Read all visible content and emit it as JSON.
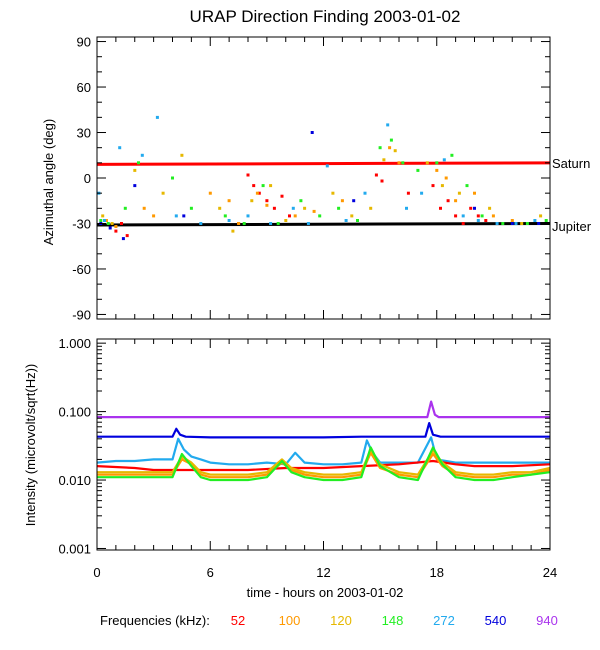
{
  "chart_data": {
    "title": "URAP Direction Finding  2003-01-02",
    "type": "scatter",
    "x_axis": {
      "label": "time - hours on 2003-01-02",
      "range": [
        0,
        24
      ],
      "ticks": [
        0,
        6,
        12,
        18,
        24
      ],
      "tick_labels": [
        "0",
        "6",
        "12",
        "18",
        "24"
      ]
    },
    "frequencies_label": "Frequencies (kHz):",
    "frequencies": [
      {
        "name": "52",
        "color": "#ff0000"
      },
      {
        "name": "100",
        "color": "#ff9900"
      },
      {
        "name": "120",
        "color": "#e6b800"
      },
      {
        "name": "148",
        "color": "#22ee22"
      },
      {
        "name": "272",
        "color": "#22aaee"
      },
      {
        "name": "540",
        "color": "#0000dd"
      },
      {
        "name": "940",
        "color": "#aa33ee"
      }
    ],
    "panels": [
      {
        "id": "azimuth",
        "ylabel": "Azimuthal angle (deg)",
        "ylim": [
          -93,
          93
        ],
        "yticks": [
          90,
          60,
          30,
          0,
          -30,
          -60,
          -90
        ],
        "ytick_labels": [
          "90",
          "60",
          "30",
          "0",
          "-30",
          "-60",
          "-90"
        ],
        "reference_lines": [
          {
            "label": "Saturn",
            "color": "#ff0000",
            "x": [
              0,
              24
            ],
            "y": [
              9,
              10
            ]
          },
          {
            "label": "Jupiter",
            "color": "#000000",
            "x": [
              0,
              24
            ],
            "y": [
              -31,
              -30
            ]
          }
        ],
        "series": [
          {
            "name": "52",
            "x": [
              1.0,
              1.3,
              1.6,
              7.5,
              8.0,
              8.3,
              8.6,
              9.0,
              9.4,
              9.8,
              10.2,
              14.8,
              15.1,
              16.5,
              17.8,
              18.2,
              18.6,
              19.0,
              19.4,
              19.8,
              20.2,
              20.6
            ],
            "y": [
              -35,
              -30,
              -38,
              -30,
              2,
              -5,
              -10,
              -15,
              -20,
              -12,
              -25,
              2,
              -2,
              -10,
              -5,
              -20,
              -15,
              -25,
              -30,
              -20,
              -25,
              -28
            ]
          },
          {
            "name": "100",
            "x": [
              0.5,
              1.0,
              2.5,
              3.0,
              6.0,
              7.0,
              7.5,
              8.5,
              9.0,
              10.5,
              11.5,
              13.0,
              15.5,
              16.0,
              18.0,
              18.5,
              19.0,
              20.0,
              21.0,
              22.0
            ],
            "y": [
              -28,
              -32,
              -20,
              -25,
              -10,
              -15,
              -30,
              -10,
              -18,
              -25,
              -22,
              -15,
              20,
              10,
              5,
              0,
              -15,
              -10,
              -25,
              -28
            ]
          },
          {
            "name": "120",
            "x": [
              0.3,
              0.8,
              2.0,
              3.5,
              4.5,
              6.5,
              7.2,
              8.2,
              9.2,
              10.0,
              11.0,
              12.5,
              13.5,
              14.5,
              15.2,
              15.8,
              17.5,
              18.3,
              19.2,
              20.8,
              22.5,
              23.5
            ],
            "y": [
              -25,
              -30,
              5,
              -10,
              15,
              -20,
              -35,
              -15,
              -5,
              -28,
              -20,
              -10,
              -25,
              -20,
              12,
              18,
              10,
              -5,
              -10,
              -20,
              -30,
              -25
            ]
          },
          {
            "name": "148",
            "x": [
              0.2,
              0.6,
              1.5,
              2.2,
              4.0,
              5.0,
              6.8,
              7.8,
              8.8,
              9.6,
              10.8,
              11.8,
              12.8,
              13.8,
              15.0,
              15.6,
              16.2,
              17.0,
              18.0,
              18.8,
              19.6,
              20.4,
              21.5,
              22.8,
              23.8
            ],
            "y": [
              -28,
              -30,
              -20,
              10,
              0,
              -20,
              -25,
              -30,
              -5,
              -30,
              -15,
              -25,
              -20,
              -28,
              20,
              25,
              10,
              5,
              10,
              15,
              -5,
              -25,
              -30,
              -30,
              -28
            ]
          },
          {
            "name": "272",
            "x": [
              0.1,
              0.4,
              1.2,
              2.4,
              3.2,
              4.2,
              5.5,
              7.0,
              8.0,
              9.2,
              10.4,
              11.2,
              12.2,
              13.2,
              14.2,
              15.4,
              16.4,
              17.2,
              18.4,
              19.4,
              20.2,
              21.2,
              22.2,
              23.2
            ],
            "y": [
              -10,
              -28,
              20,
              15,
              40,
              -25,
              -30,
              -28,
              -25,
              -30,
              -20,
              -30,
              8,
              -28,
              -10,
              35,
              -20,
              -10,
              12,
              -25,
              -28,
              -30,
              -30,
              -28
            ]
          },
          {
            "name": "540",
            "x": [
              0.2,
              0.7,
              1.4,
              2.0,
              4.6,
              11.4,
              13.6,
              20.0,
              22.0,
              23.4
            ],
            "y": [
              -30,
              -33,
              -40,
              -5,
              -25,
              30,
              -15,
              -20,
              -30,
              -30
            ]
          }
        ]
      },
      {
        "id": "intensity",
        "ylabel": "Intensity (microvolt/sqrt(Hz))",
        "scale": "log",
        "ylim": [
          0.00095,
          1.15
        ],
        "yticks": [
          1.0,
          0.1,
          0.01,
          0.001
        ],
        "ytick_labels": [
          "1.000",
          "0.100",
          "0.010",
          "0.001"
        ],
        "series": [
          {
            "name": "940",
            "x": [
              0,
              4,
              8,
              12,
              16,
              17.5,
              17.7,
              17.9,
              18.1,
              20,
              24
            ],
            "y": [
              0.083,
              0.083,
              0.083,
              0.083,
              0.083,
              0.083,
              0.14,
              0.09,
              0.083,
              0.083,
              0.083
            ]
          },
          {
            "name": "540",
            "x": [
              0,
              2,
              4,
              4.2,
              4.4,
              4.7,
              6,
              8,
              10,
              12,
              14,
              16,
              17.4,
              17.6,
              17.8,
              18.2,
              20,
              22,
              24
            ],
            "y": [
              0.043,
              0.043,
              0.043,
              0.056,
              0.046,
              0.043,
              0.042,
              0.042,
              0.042,
              0.042,
              0.043,
              0.043,
              0.043,
              0.068,
              0.046,
              0.043,
              0.043,
              0.043,
              0.043
            ]
          },
          {
            "name": "272",
            "x": [
              0,
              1,
              2,
              3,
              4,
              4.3,
              4.6,
              5,
              5.5,
              6,
              7,
              8,
              9,
              10,
              10.5,
              11,
              12,
              13,
              14,
              14.3,
              14.6,
              15,
              16,
              17,
              17.7,
              18,
              19,
              20,
              21,
              22,
              23,
              24
            ],
            "y": [
              0.018,
              0.019,
              0.019,
              0.02,
              0.02,
              0.04,
              0.028,
              0.022,
              0.02,
              0.018,
              0.017,
              0.017,
              0.018,
              0.017,
              0.025,
              0.018,
              0.017,
              0.017,
              0.018,
              0.038,
              0.025,
              0.018,
              0.018,
              0.018,
              0.042,
              0.02,
              0.018,
              0.018,
              0.018,
              0.018,
              0.018,
              0.018
            ]
          },
          {
            "name": "52",
            "x": [
              0,
              2,
              3,
              4,
              6,
              8,
              10,
              12,
              14,
              16,
              17.8,
              18.4,
              19,
              20,
              21,
              22,
              24
            ],
            "y": [
              0.016,
              0.015,
              0.014,
              0.014,
              0.014,
              0.014,
              0.015,
              0.015,
              0.016,
              0.017,
              0.019,
              0.018,
              0.017,
              0.016,
              0.016,
              0.016,
              0.017
            ]
          },
          {
            "name": "100",
            "x": [
              0,
              1,
              2,
              3,
              4,
              4.5,
              5,
              5.5,
              6,
              7,
              8,
              9,
              9.8,
              10.3,
              11,
              12,
              13,
              14,
              14.5,
              15,
              16,
              17,
              17.8,
              18.3,
              19,
              20,
              21,
              22,
              23,
              24
            ],
            "y": [
              0.012,
              0.012,
              0.012,
              0.012,
              0.012,
              0.02,
              0.017,
              0.012,
              0.011,
              0.011,
              0.011,
              0.012,
              0.018,
              0.014,
              0.012,
              0.011,
              0.011,
              0.012,
              0.025,
              0.015,
              0.012,
              0.011,
              0.024,
              0.016,
              0.012,
              0.011,
              0.011,
              0.012,
              0.012,
              0.014
            ]
          },
          {
            "name": "120",
            "x": [
              0,
              1,
              2,
              3,
              4,
              4.5,
              5,
              5.5,
              6,
              7,
              8,
              9,
              9.8,
              10.3,
              11,
              12,
              13,
              14,
              14.5,
              15,
              16,
              17,
              17.8,
              18.3,
              19,
              20,
              21,
              22,
              23,
              24
            ],
            "y": [
              0.013,
              0.013,
              0.013,
              0.013,
              0.013,
              0.022,
              0.018,
              0.013,
              0.012,
              0.012,
              0.012,
              0.013,
              0.02,
              0.015,
              0.013,
              0.012,
              0.012,
              0.013,
              0.028,
              0.017,
              0.013,
              0.012,
              0.027,
              0.018,
              0.013,
              0.012,
              0.012,
              0.013,
              0.013,
              0.015
            ]
          },
          {
            "name": "148",
            "x": [
              0,
              1,
              2,
              3,
              4,
              4.5,
              5,
              5.5,
              6,
              7,
              8,
              9,
              9.8,
              10.3,
              11,
              12,
              13,
              14,
              14.5,
              15,
              16,
              17,
              17.8,
              18.3,
              19,
              20,
              21,
              22,
              23,
              24
            ],
            "y": [
              0.011,
              0.011,
              0.011,
              0.011,
              0.011,
              0.024,
              0.016,
              0.011,
              0.01,
              0.01,
              0.01,
              0.011,
              0.019,
              0.013,
              0.011,
              0.01,
              0.01,
              0.011,
              0.03,
              0.016,
              0.011,
              0.01,
              0.03,
              0.017,
              0.011,
              0.01,
              0.01,
              0.011,
              0.012,
              0.013
            ]
          }
        ]
      }
    ]
  }
}
